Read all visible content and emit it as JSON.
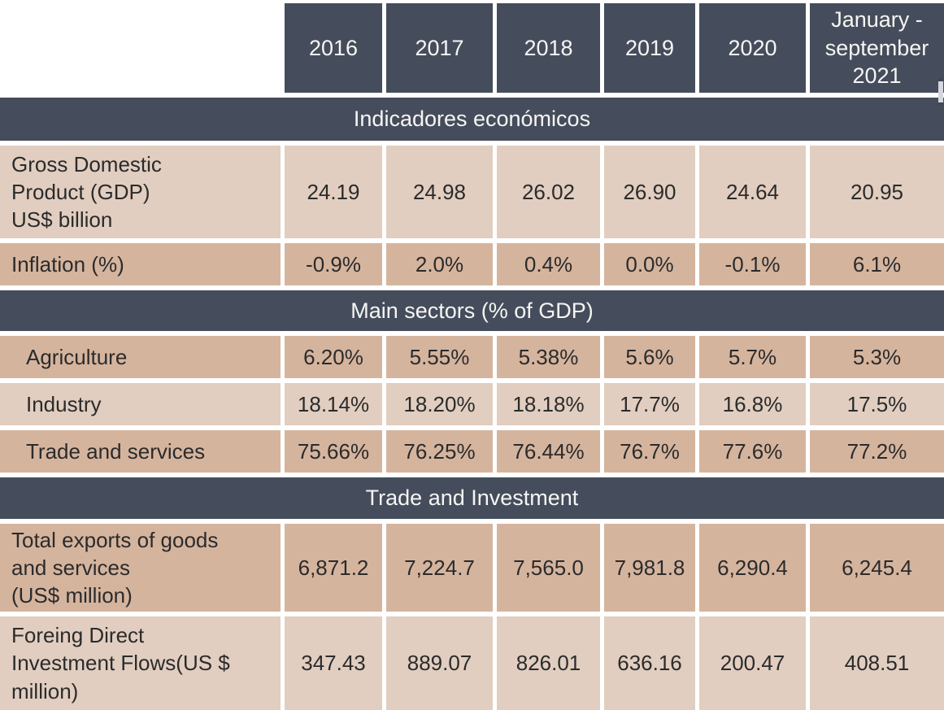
{
  "colors": {
    "header_bg": "#454d5c",
    "row_light": "#e1cec0",
    "row_dark": "#d5b49e",
    "text_dark": "#2b2b2b",
    "text_light": "#f6f5f3",
    "background": "#ffffff"
  },
  "chart_data": {
    "type": "table",
    "column_headers": [
      "2016",
      "2017",
      "2018",
      "2019",
      "2020",
      "January - september 2021"
    ],
    "sections": [
      {
        "title": "Indicadores económicos",
        "rows": [
          {
            "label": "Gross Domestic\nProduct (GDP)\nUS$ billion",
            "values": [
              "24.19",
              "24.98",
              "26.02",
              "26.90",
              "24.64",
              "20.95"
            ]
          },
          {
            "label": "Inflation (%)",
            "values": [
              "-0.9%",
              "2.0%",
              "0.4%",
              "0.0%",
              "-0.1%",
              "6.1%"
            ]
          }
        ]
      },
      {
        "title": "Main sectors (% of GDP)",
        "rows": [
          {
            "label": "Agriculture",
            "values": [
              "6.20%",
              "5.55%",
              "5.38%",
              "5.6%",
              "5.7%",
              "5.3%"
            ]
          },
          {
            "label": "Industry",
            "values": [
              "18.14%",
              "18.20%",
              "18.18%",
              "17.7%",
              "16.8%",
              "17.5%"
            ]
          },
          {
            "label": "Trade and services",
            "values": [
              "75.66%",
              "76.25%",
              "76.44%",
              "76.7%",
              "77.6%",
              "77.2%"
            ]
          }
        ]
      },
      {
        "title": "Trade and Investment",
        "rows": [
          {
            "label": "Total exports of goods\nand services\n(US$ million)",
            "values": [
              "6,871.2",
              "7,224.7",
              "7,565.0",
              "7,981.8",
              "6,290.4",
              "6,245.4"
            ]
          },
          {
            "label": "Foreing Direct\nInvestment Flows(US $\nmillion)",
            "values": [
              "347.43",
              "889.07",
              "826.01",
              "636.16",
              "200.47",
              "408.51"
            ]
          }
        ]
      }
    ]
  }
}
